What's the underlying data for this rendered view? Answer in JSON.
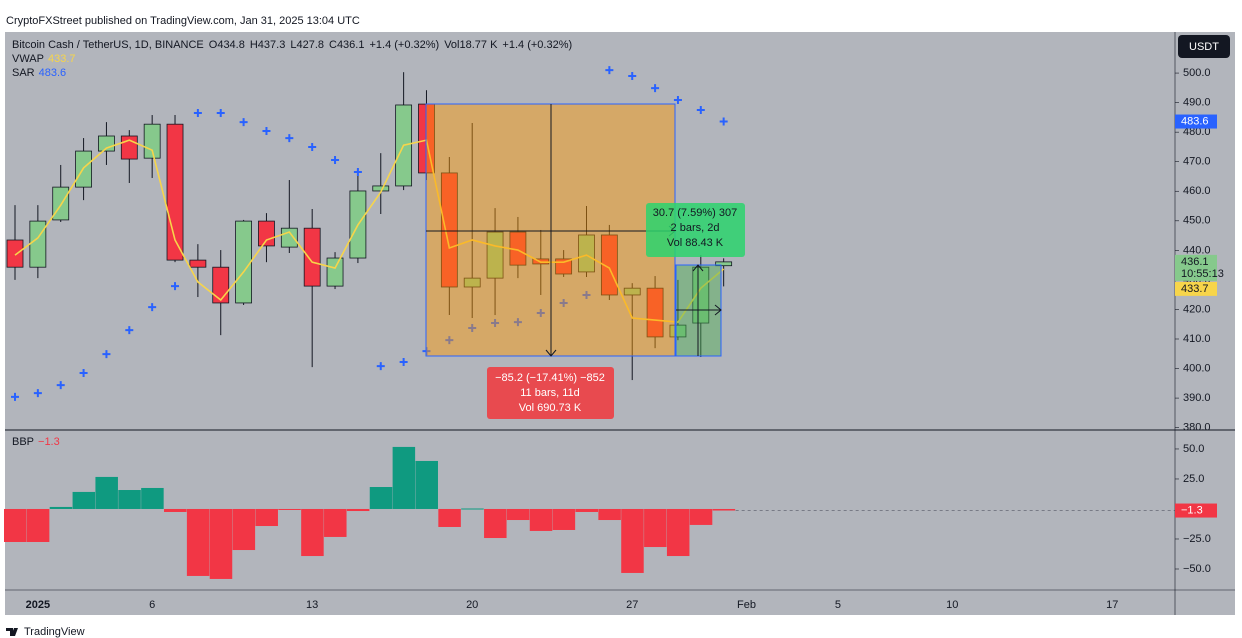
{
  "page": {
    "publisher": "CryptoFXStreet published on TradingView.com, Jan 31, 2025 13:04 UTC",
    "currency": "USDT",
    "countdown": "10:55:13",
    "footer": "TradingView"
  },
  "chart_data": [
    {
      "type": "candlestick",
      "title": "Bitcoin Cash / TetherUS, 1D, BINANCE",
      "legend_values": [
        "O434.8",
        "H437.3",
        "L427.8",
        "C436.1",
        "+1.4 (+0.32%)",
        "Vol18.77 K",
        "+1.4 (+0.32%)"
      ],
      "categories": [
        null,
        "2025",
        null,
        null,
        null,
        null,
        "6",
        null,
        null,
        null,
        null,
        null,
        null,
        "13",
        null,
        null,
        null,
        null,
        null,
        null,
        "20",
        null,
        null,
        null,
        null,
        null,
        null,
        "27",
        null,
        null,
        null,
        null,
        "Feb",
        null,
        null,
        null,
        "5",
        null,
        null,
        null,
        null,
        "10",
        null,
        null,
        null,
        null,
        null,
        null,
        "17",
        null
      ],
      "open": [
        443.5,
        434.3,
        450.3,
        461.4,
        473.6,
        478.7,
        471.2,
        482.7,
        436.7,
        434.3,
        422.2,
        449.9,
        441.1,
        447.5,
        427.9,
        437.4,
        460.1,
        461.8,
        489.5,
        466.2,
        427.6,
        430.6,
        446.2,
        437.1,
        437.1,
        432.7,
        445.2,
        424.9,
        427.2,
        410.7,
        415.4,
        434.8,
        null,
        null,
        null,
        null,
        null,
        null,
        null,
        null,
        null,
        null,
        null,
        null,
        null,
        null,
        null,
        null,
        null,
        null
      ],
      "high": [
        455.3,
        455.3,
        468.9,
        478.0,
        483.4,
        480.7,
        485.8,
        485.8,
        442.1,
        440.1,
        450.3,
        452.6,
        463.8,
        454.0,
        439.4,
        467.2,
        472.9,
        500.3,
        494.2,
        471.6,
        483.1,
        454.3,
        451.3,
        446.9,
        440.1,
        455.0,
        448.6,
        428.9,
        431.3,
        430.0,
        438.4,
        437.3,
        null,
        null,
        null,
        null,
        null,
        null,
        null,
        null,
        null,
        null,
        null,
        null,
        null,
        null,
        null,
        null,
        null,
        null
      ],
      "low": [
        430.0,
        430.6,
        449.6,
        457.0,
        468.9,
        462.8,
        464.5,
        436.0,
        424.2,
        411.3,
        421.5,
        436.0,
        439.1,
        400.5,
        426.9,
        435.7,
        452.3,
        460.4,
        463.8,
        418.1,
        417.1,
        418.1,
        430.6,
        424.9,
        431.0,
        431.0,
        423.2,
        396.1,
        406.9,
        409.6,
        403.9,
        427.8,
        null,
        null,
        null,
        null,
        null,
        null,
        null,
        null,
        null,
        null,
        null,
        null,
        null,
        null,
        null,
        null,
        null,
        null
      ],
      "close": [
        434.3,
        449.9,
        461.4,
        473.6,
        478.7,
        470.9,
        482.7,
        436.7,
        434.3,
        422.2,
        449.9,
        441.5,
        447.5,
        427.9,
        437.4,
        460.1,
        461.8,
        489.2,
        466.2,
        427.6,
        430.6,
        446.2,
        435.0,
        435.4,
        432.0,
        445.2,
        424.9,
        427.2,
        410.7,
        414.7,
        434.3,
        436.1,
        null,
        null,
        null,
        null,
        null,
        null,
        null,
        null,
        null,
        null,
        null,
        null,
        null,
        null,
        null,
        null,
        null,
        null
      ],
      "up_color": "#86c98c",
      "down_color": "#f23645",
      "series": [
        {
          "name": "VWAP",
          "type": "line",
          "color": "#f7d54a",
          "values": [
            438.4,
            444.2,
            455.3,
            467.9,
            474.6,
            477.3,
            473.9,
            443.5,
            429.3,
            423.2,
            432.7,
            443.5,
            446.2,
            436.0,
            434.0,
            448.6,
            459.7,
            475.6,
            477.3,
            440.8,
            443.5,
            441.5,
            440.1,
            436.0,
            436.0,
            438.4,
            434.0,
            417.1,
            416.4,
            415.7,
            427.2,
            433.7,
            null,
            null,
            null,
            null,
            null,
            null,
            null,
            null,
            null,
            null,
            null,
            null,
            null,
            null,
            null,
            null,
            null,
            null
          ]
        },
        {
          "name": "SAR",
          "type": "scatter",
          "color": "#2962ff",
          "values": [
            390.4,
            391.7,
            394.4,
            398.5,
            404.9,
            413.0,
            420.8,
            427.9,
            486.5,
            486.5,
            483.4,
            480.4,
            478.0,
            475.0,
            470.6,
            466.5,
            400.8,
            402.2,
            405.9,
            409.6,
            413.7,
            415.4,
            415.7,
            418.8,
            422.2,
            424.9,
            501.0,
            499.0,
            494.9,
            490.9,
            487.5,
            483.6,
            null,
            null,
            null,
            null,
            null,
            null,
            null,
            null,
            null,
            null,
            null,
            null,
            null,
            null,
            null,
            null,
            null,
            null
          ]
        }
      ],
      "ylim": [
        379.2,
        513.9
      ],
      "yticks": [
        {
          "value": 380,
          "label": "380.0"
        },
        {
          "value": 390,
          "label": "390.0"
        },
        {
          "value": 400,
          "label": "400.0"
        },
        {
          "value": 410,
          "label": "410.0"
        },
        {
          "value": 420,
          "label": "420.0"
        },
        {
          "value": 430,
          "label": "430.0"
        },
        {
          "value": 440,
          "label": "440.0"
        },
        {
          "value": 450,
          "label": "450.0"
        },
        {
          "value": 460,
          "label": "460.0"
        },
        {
          "value": 470,
          "label": "470.0"
        },
        {
          "value": 480,
          "label": "480.0"
        },
        {
          "value": 490,
          "label": "490.0"
        },
        {
          "value": 500,
          "label": "500.0"
        }
      ],
      "grid": false,
      "annotations": [
        {
          "color": "#e84a4f",
          "lines": [
            "−85.2 (−17.41%) −852",
            "11 bars, 11d",
            "Vol 690.73 K"
          ]
        },
        {
          "color": "#2bd46d",
          "lines": [
            "30.7 (7.59%) 307",
            "2 bars, 2d",
            "Vol 88.43 K"
          ]
        }
      ]
    },
    {
      "type": "bar",
      "series": [
        {
          "name": "BBP",
          "up_color": "#0f9a80",
          "down_color": "#f23645",
          "values": [
            -27.5,
            -27.5,
            1.7,
            14.2,
            26.7,
            15.8,
            17.5,
            -2.5,
            -55.8,
            -58.3,
            -34.2,
            -14.2,
            -0.8,
            -39.2,
            -23.3,
            -1.7,
            18.3,
            51.7,
            40.0,
            -15.0,
            0.4,
            -24.2,
            -9.2,
            -18.3,
            -17.5,
            -2.5,
            -9.2,
            -53.3,
            -31.7,
            -39.2,
            -13.3,
            -1.3,
            null,
            null,
            null,
            null,
            null,
            null,
            null,
            null,
            null,
            null,
            null,
            null,
            null,
            null,
            null,
            null,
            null,
            null
          ],
          "value_labels": [
            null,
            null,
            null,
            null,
            null,
            null,
            null,
            null,
            null,
            null,
            null,
            null,
            null,
            null,
            null,
            null,
            null,
            null,
            null,
            null,
            null,
            null,
            null,
            null,
            null,
            null,
            null,
            null,
            null,
            null,
            null,
            "−1.3",
            null,
            null,
            null,
            null,
            null,
            null,
            null,
            null,
            null,
            null,
            null,
            null,
            null,
            null,
            null,
            null,
            null,
            null
          ]
        }
      ],
      "ylim": [
        -67.5,
        65.8
      ],
      "yticks": [
        {
          "value": 50,
          "label": "50.0"
        },
        {
          "value": 25,
          "label": "25.0"
        },
        {
          "value": -25,
          "label": "−25.0"
        },
        {
          "value": -50,
          "label": "−50.0"
        }
      ],
      "grid": false
    }
  ]
}
